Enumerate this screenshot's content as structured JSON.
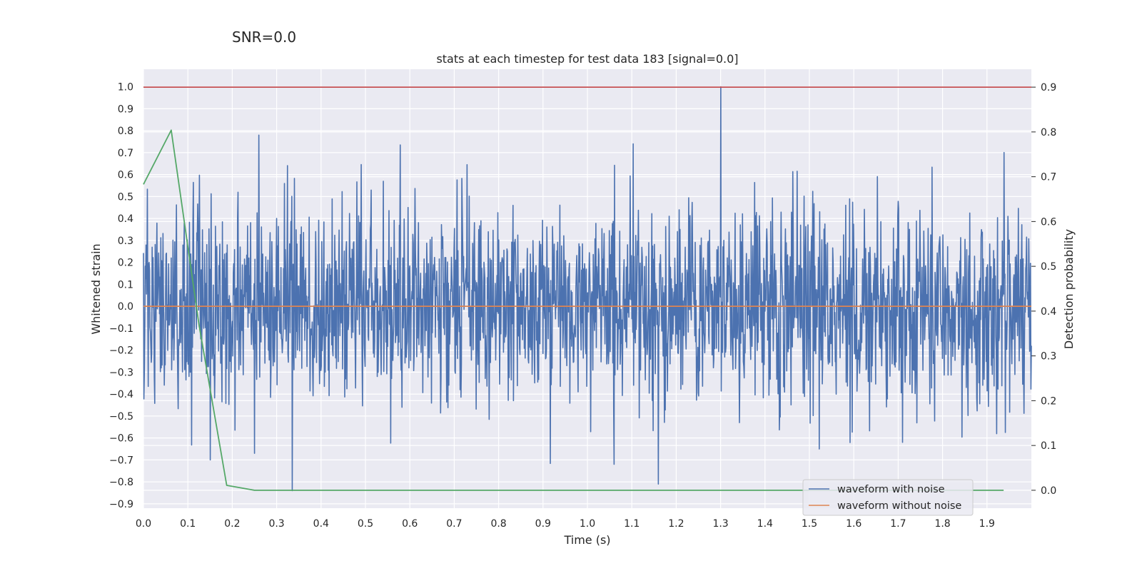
{
  "page": {
    "suptitle": "SNR=0.0"
  },
  "chart_data": {
    "type": "line",
    "title": "stats at each timestep for test data 183 [signal=0.0]",
    "xlabel": "Time (s)",
    "ylabel": "Whitened strain",
    "y2label": "Detection probability",
    "xlim": [
      0.0,
      2.0
    ],
    "ylim": [
      -0.92,
      1.08
    ],
    "y2lim": [
      -0.04,
      0.94
    ],
    "xticks": [
      0.0,
      0.1,
      0.2,
      0.3,
      0.4,
      0.5,
      0.6,
      0.7,
      0.8,
      0.9,
      1.0,
      1.1,
      1.2,
      1.3,
      1.4,
      1.5,
      1.6,
      1.7,
      1.8,
      1.9
    ],
    "xtick_labels": [
      "0.0",
      "0.1",
      "0.2",
      "0.3",
      "0.4",
      "0.5",
      "0.6",
      "0.7",
      "0.8",
      "0.9",
      "1.0",
      "1.1",
      "1.2",
      "1.3",
      "1.4",
      "1.5",
      "1.6",
      "1.7",
      "1.8",
      "1.9"
    ],
    "yticks": [
      1.0,
      0.9,
      0.8,
      0.7,
      0.6,
      0.5,
      0.4,
      0.3,
      0.2,
      0.1,
      0.0,
      -0.1,
      -0.2,
      -0.3,
      -0.4,
      -0.5,
      -0.6,
      -0.7,
      -0.8,
      -0.9
    ],
    "ytick_labels": [
      "1.0",
      "0.9",
      "0.8",
      "0.7",
      "0.6",
      "0.5",
      "0.4",
      "0.3",
      "0.2",
      "0.1",
      "0.0",
      "−0.1",
      "−0.2",
      "−0.3",
      "−0.4",
      "−0.5",
      "−0.6",
      "−0.7",
      "−0.8",
      "−0.9"
    ],
    "y2ticks": [
      0.9,
      0.8,
      0.7,
      0.6,
      0.5,
      0.4,
      0.3,
      0.2,
      0.1,
      0.0
    ],
    "y2tick_labels": [
      "0.9",
      "0.8",
      "0.7",
      "0.6",
      "0.5",
      "0.4",
      "0.3",
      "0.2",
      "0.1",
      "0.0"
    ],
    "legend": {
      "location": "lower-right",
      "entries": [
        {
          "label": "waveform with noise",
          "color": "#4c72b0"
        },
        {
          "label": "waveform without noise",
          "color": "#dd8452"
        }
      ]
    },
    "series": [
      {
        "name": "waveform with noise",
        "axis": "left",
        "color": "#4c72b0",
        "kind": "noise",
        "x_range": [
          0.0,
          2.0
        ],
        "samples": 2048,
        "mean": 0.0,
        "std": 0.22,
        "min": -0.84,
        "max": 1.0,
        "peaks": [
          {
            "x": 1.3,
            "y": 1.0
          },
          {
            "x": 0.26,
            "y": 0.78
          },
          {
            "x": 0.335,
            "y": -0.84
          },
          {
            "x": 1.16,
            "y": -0.81
          },
          {
            "x": 1.06,
            "y": -0.72
          },
          {
            "x": 0.15,
            "y": -0.7
          },
          {
            "x": 1.71,
            "y": -0.62
          },
          {
            "x": 0.25,
            "y": -0.67
          }
        ]
      },
      {
        "name": "waveform without noise",
        "axis": "left",
        "color": "#dd8452",
        "x": [
          0.0,
          2.0
        ],
        "y": [
          0.0,
          0.0
        ]
      },
      {
        "name": "detection probability",
        "axis": "right",
        "color": "#55a868",
        "x": [
          0.0,
          0.0625,
          0.125,
          0.1875,
          0.25,
          0.3125,
          1.9375
        ],
        "y": [
          0.683,
          0.804,
          0.37,
          0.011,
          0.0,
          0.0,
          0.0
        ]
      },
      {
        "name": "threshold",
        "axis": "right",
        "color": "#c44e52",
        "x": [
          0.0,
          2.0
        ],
        "y": [
          0.9,
          0.9
        ]
      }
    ]
  }
}
